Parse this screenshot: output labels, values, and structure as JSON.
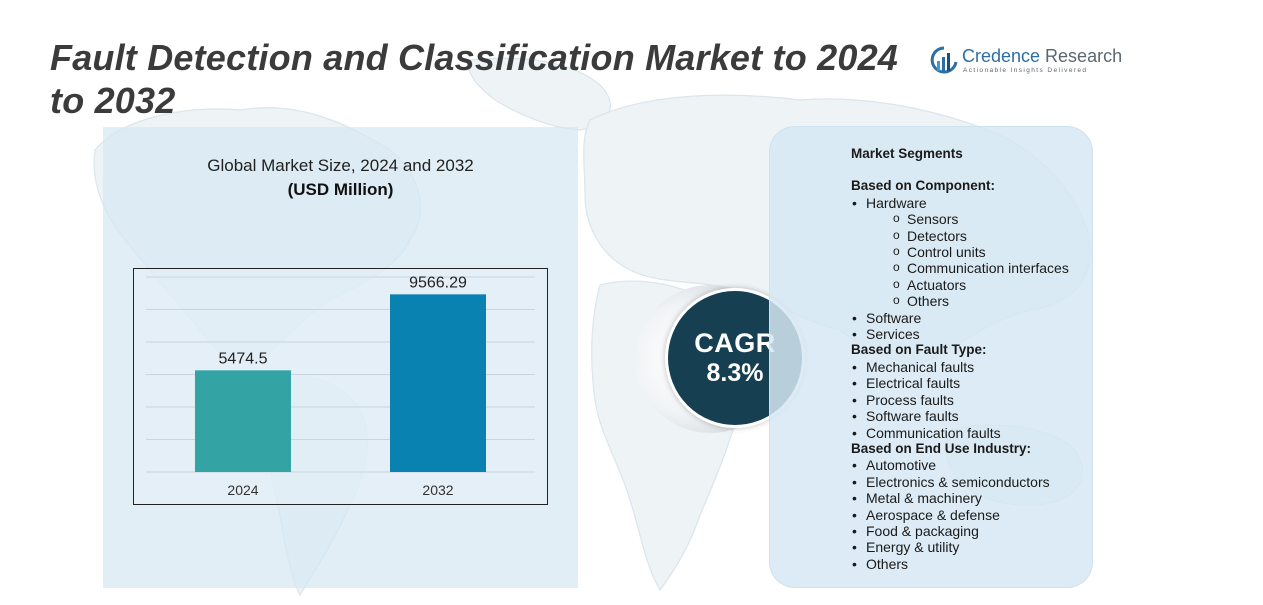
{
  "title": "Fault Detection and Classification Market to 2024 to 2032",
  "logo": {
    "name_a": "Credence",
    "name_b": " Research",
    "tagline": "Actionable Insights Delivered"
  },
  "chart_data": {
    "type": "bar",
    "title": "Global Market Size,  2024 and 2032",
    "subtitle": "(USD Million)",
    "categories": [
      "2024",
      "2032"
    ],
    "values": [
      5474.5,
      9566.29
    ],
    "value_labels": [
      "5474.5",
      "9566.29"
    ],
    "colors": [
      "#33a3a3",
      "#0a82b1"
    ],
    "xlabel": "",
    "ylabel": "",
    "ylim": [
      0,
      10500
    ],
    "grid": true
  },
  "cagr": {
    "label": "CAGR",
    "value": "8.3%"
  },
  "segments": {
    "heading": "Market Segments",
    "component": {
      "label": "Based on Component:",
      "hardware": "Hardware",
      "hardware_sub": [
        "Sensors",
        "Detectors",
        "Control units",
        "Communication interfaces",
        "Actuators",
        "Others"
      ],
      "rest": [
        "Software",
        "Services"
      ]
    },
    "fault_type": {
      "label": "Based on Fault Type:",
      "items": [
        "Mechanical faults",
        "Electrical faults",
        "Process faults",
        "Software faults",
        "Communication faults"
      ]
    },
    "end_use": {
      "label": "Based on End Use Industry:",
      "items": [
        "Automotive",
        "Electronics & semiconductors",
        "Metal & machinery",
        "Aerospace & defense",
        "Food & packaging",
        "Energy & utility",
        "Others"
      ]
    }
  }
}
